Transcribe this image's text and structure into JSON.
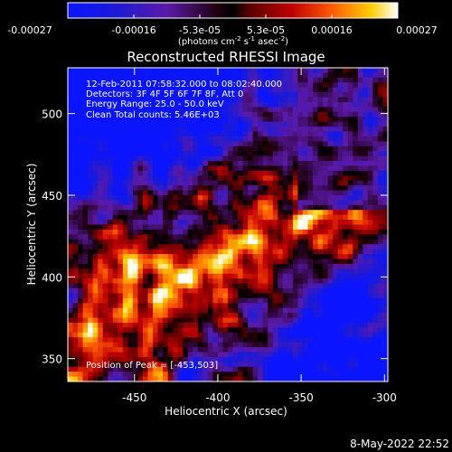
{
  "colorbar": {
    "ticks": [
      "-0.00027",
      "-0.00016",
      "-5.3e-05",
      "5.3e-05",
      "0.00016",
      "0.00027"
    ],
    "units_main": "(photons cm",
    "units_exp1": "-2",
    "units_mid": " s",
    "units_exp2": "-1",
    "units_end": " asec",
    "units_exp3": "-2",
    "units_close": ")"
  },
  "annotations": {
    "time": "12-Feb-2011 07:58:32.000 to 08:02:40.000",
    "detectors": "Detectors: 3F 4F 5F 6F 7F 8F, Att 0",
    "energy": "Energy Range: 25.0 - 50.0 keV",
    "clean": "Clean     Total counts: 5.46E+03",
    "peak": "Position of Peak = [-453,503]"
  },
  "footer": {
    "date": "8-May-2022 22:52"
  },
  "chart_data": {
    "type": "heatmap",
    "title": "Reconstructed RHESSI Image",
    "xlabel": "Heliocentric X (arcsec)",
    "ylabel": "Heliocentric Y (arcsec)",
    "xlim": [
      -490,
      -298
    ],
    "ylim": [
      336,
      528
    ],
    "xticks": [
      -450,
      -400,
      -350,
      -300
    ],
    "xtick_labels": [
      "-450",
      "-400",
      "-350",
      "-300"
    ],
    "yticks": [
      350,
      400,
      450,
      500
    ],
    "ytick_labels": [
      "350",
      "400",
      "450",
      "500"
    ],
    "colorscale_range": [
      -0.00027,
      0.00027
    ],
    "peak_position": [
      -453,
      503
    ],
    "grid": false
  }
}
